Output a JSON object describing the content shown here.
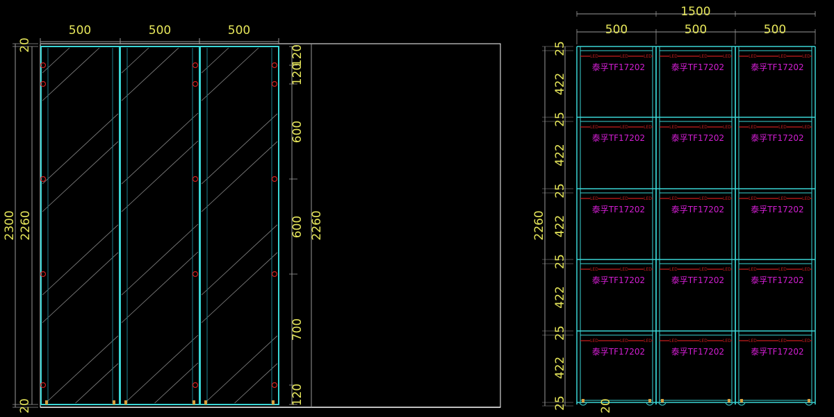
{
  "colors": {
    "background": "#000000",
    "frame": "#3ad6d6",
    "frame_inner": "#1c7c8c",
    "dimension_line": "#9a9a9a",
    "dimension_text": "#e6e65a",
    "hinge": "#d21e1e",
    "led_line": "#c81e1e",
    "label": "#d21ed2",
    "outline": "#ffffff",
    "hatch": "#8a8a8a",
    "foot": "#d8a040"
  },
  "left_view": {
    "top_widths": [
      "500",
      "500",
      "500"
    ],
    "overall_height": "2300",
    "inner_height": "2260",
    "top_gap": "20",
    "bottom_gap": "20",
    "hinge_spacing": [
      "120",
      "120",
      "600",
      "600",
      "700",
      "120"
    ],
    "right_height": "2260"
  },
  "right_view": {
    "overall_width": "1500",
    "column_widths": [
      "500",
      "500",
      "500"
    ],
    "overall_height": "2260",
    "row_dims": [
      "25",
      "422",
      "25",
      "422",
      "25",
      "422",
      "25",
      "422",
      "25",
      "422",
      "25"
    ],
    "bottom_gap": "20",
    "led_tag": "LED",
    "cell_label": "泰孚TF17202"
  }
}
